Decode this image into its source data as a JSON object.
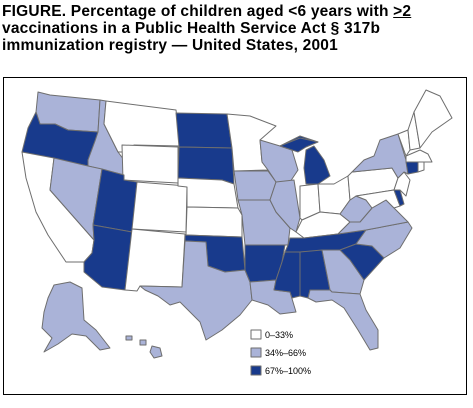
{
  "figure": {
    "prefix": "FIGURE.",
    "title_part1": "Percentage of children aged <6 years with ",
    "title_ul": ">2",
    "title_part2": " vaccinations in a Public Health Service Act § 317b immunization registry — United States, 2001"
  },
  "colors": {
    "low": "#ffffff",
    "mid": "#aab3d8",
    "high": "#183a8c",
    "border": "#6e6e6e"
  },
  "legend": [
    {
      "label": "0–33%",
      "level": "low"
    },
    {
      "label": "34%–66%",
      "level": "mid"
    },
    {
      "label": "67%–100%",
      "level": "high"
    }
  ],
  "states": {
    "WA": "mid",
    "OR": "high",
    "CA": "low",
    "ID": "mid",
    "NV": "mid",
    "MT": "low",
    "WY": "low",
    "UT": "high",
    "AZ": "high",
    "CO": "low",
    "NM": "low",
    "ND": "high",
    "SD": "high",
    "NE": "low",
    "KS": "low",
    "OK": "high",
    "TX": "mid",
    "MN": "low",
    "IA": "mid",
    "MO": "mid",
    "AR": "high",
    "LA": "mid",
    "WI": "mid",
    "IL": "mid",
    "MI": "high",
    "IN": "low",
    "OH": "low",
    "KY": "low",
    "TN": "high",
    "MS": "high",
    "AL": "high",
    "GA": "mid",
    "FL": "mid",
    "SC": "high",
    "NC": "mid",
    "VA": "mid",
    "WV": "mid",
    "PA": "low",
    "NY": "mid",
    "VT": "low",
    "NH": "low",
    "ME": "low",
    "MA": "low",
    "CT": "high",
    "RI": "low",
    "NJ": "low",
    "DE": "high",
    "MD": "low",
    "AK": "mid",
    "HI": "mid"
  }
}
